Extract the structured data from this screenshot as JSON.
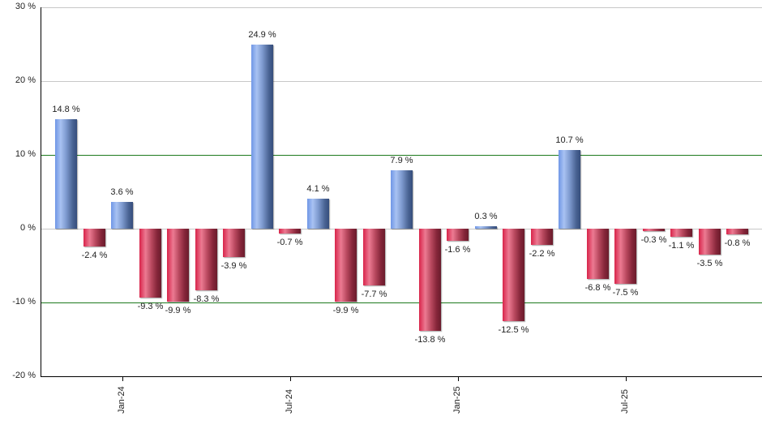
{
  "chart_data": {
    "type": "bar",
    "title": "",
    "xlabel": "",
    "ylabel": "",
    "ylim": [
      -20,
      30
    ],
    "yticks": [
      "30 %",
      "20 %",
      "10 %",
      "0 %",
      "-10 %",
      "-20 %"
    ],
    "ytick_values": [
      30,
      20,
      10,
      0,
      -10,
      -20
    ],
    "reference_lines": [
      10,
      -10
    ],
    "reference_line_color": "#1e7a1e",
    "grid_color": "#c8c8c8",
    "positive_color": "#7f9bd0",
    "negative_color": "#c8334f",
    "xtick_labels": [
      {
        "label": "Jan-24",
        "bar_index": 2.5
      },
      {
        "label": "Jul-24",
        "bar_index": 8.5
      },
      {
        "label": "Jan-25",
        "bar_index": 14.5
      },
      {
        "label": "Jul-25",
        "bar_index": 20.5
      }
    ],
    "values": [
      14.8,
      -2.4,
      3.6,
      -9.3,
      -9.9,
      -8.3,
      -3.9,
      24.9,
      -0.7,
      4.1,
      -9.9,
      -7.7,
      7.9,
      -13.8,
      -1.6,
      0.3,
      -12.5,
      -2.2,
      10.7,
      -6.8,
      -7.5,
      -0.3,
      -1.1,
      -3.5,
      -0.8
    ],
    "labels": [
      "14.8 %",
      "-2.4 %",
      "3.6 %",
      "-9.3 %",
      "-9.9 %",
      "-8.3 %",
      "-3.9 %",
      "24.9 %",
      "-0.7 %",
      "4.1 %",
      "-9.9 %",
      "-7.7 %",
      "7.9 %",
      "-13.8 %",
      "-1.6 %",
      "0.3 %",
      "-12.5 %",
      "-2.2 %",
      "10.7 %",
      "-6.8 %",
      "-7.5 %",
      "-0.3 %",
      "-1.1 %",
      "-3.5 %",
      "-0.8 %"
    ],
    "legend": null
  }
}
